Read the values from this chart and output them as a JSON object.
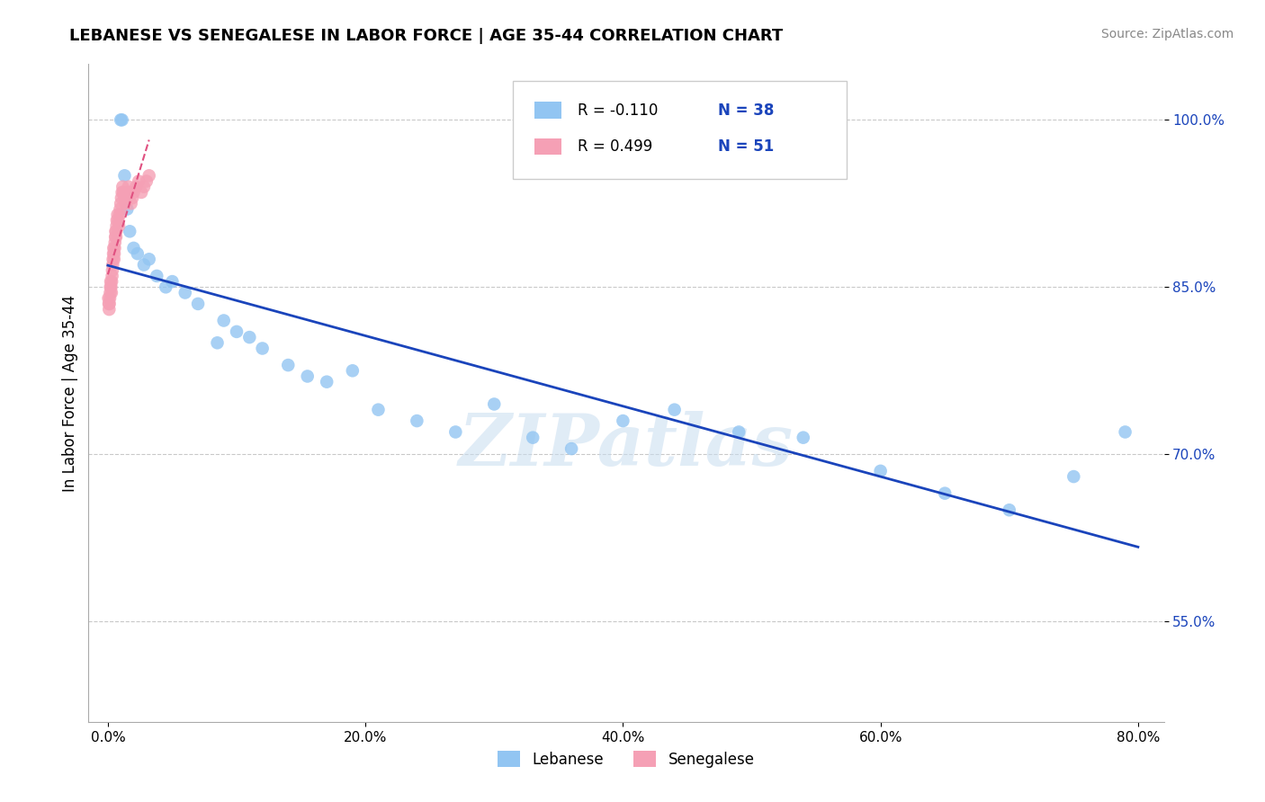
{
  "title": "LEBANESE VS SENEGALESE IN LABOR FORCE | AGE 35-44 CORRELATION CHART",
  "source": "Source: ZipAtlas.com",
  "ylabel": "In Labor Force | Age 35-44",
  "x_tick_labels": [
    "0.0%",
    "20.0%",
    "40.0%",
    "60.0%",
    "80.0%"
  ],
  "x_tick_values": [
    0.0,
    20.0,
    40.0,
    60.0,
    80.0
  ],
  "y_tick_labels": [
    "55.0%",
    "70.0%",
    "85.0%",
    "100.0%"
  ],
  "y_tick_values": [
    55.0,
    70.0,
    85.0,
    100.0
  ],
  "xlim": [
    -1.5,
    82.0
  ],
  "ylim": [
    46.0,
    105.0
  ],
  "legend_r1": "R = -0.110",
  "legend_n1": "N = 38",
  "legend_r2": "R = 0.499",
  "legend_n2": "N = 51",
  "watermark": "ZIPatlas",
  "lebanese_color": "#92C5F2",
  "senegalese_color": "#F5A0B5",
  "lebanese_line_color": "#1A44BB",
  "senegalese_line_color": "#E05080",
  "background_color": "#FFFFFF",
  "grid_color": "#BBBBBB",
  "lebanese_x": [
    1.0,
    1.1,
    1.3,
    1.5,
    1.7,
    2.0,
    2.3,
    2.8,
    3.2,
    3.8,
    4.5,
    5.0,
    6.0,
    7.0,
    8.5,
    9.0,
    10.0,
    11.0,
    12.0,
    14.0,
    15.5,
    17.0,
    19.0,
    21.0,
    24.0,
    27.0,
    30.0,
    33.0,
    36.0,
    40.0,
    44.0,
    49.0,
    54.0,
    60.0,
    65.0,
    70.0,
    75.0,
    79.0
  ],
  "lebanese_y": [
    100.0,
    100.0,
    95.0,
    92.0,
    90.0,
    88.5,
    88.0,
    87.0,
    87.5,
    86.0,
    85.0,
    85.5,
    84.5,
    83.5,
    80.0,
    82.0,
    81.0,
    80.5,
    79.5,
    78.0,
    77.0,
    76.5,
    77.5,
    74.0,
    73.0,
    72.0,
    74.5,
    71.5,
    70.5,
    73.0,
    74.0,
    72.0,
    71.5,
    68.5,
    66.5,
    65.0,
    68.0,
    72.0
  ],
  "senegalese_x": [
    0.05,
    0.08,
    0.1,
    0.12,
    0.15,
    0.18,
    0.2,
    0.22,
    0.25,
    0.28,
    0.3,
    0.33,
    0.35,
    0.38,
    0.4,
    0.43,
    0.45,
    0.48,
    0.5,
    0.53,
    0.55,
    0.58,
    0.6,
    0.63,
    0.65,
    0.68,
    0.7,
    0.75,
    0.8,
    0.85,
    0.9,
    0.95,
    1.0,
    1.05,
    1.1,
    1.15,
    1.2,
    1.3,
    1.4,
    1.5,
    1.6,
    1.7,
    1.8,
    1.9,
    2.0,
    2.2,
    2.4,
    2.6,
    2.8,
    3.0,
    3.2
  ],
  "senegalese_y": [
    84.0,
    83.5,
    83.0,
    83.5,
    84.0,
    84.5,
    85.0,
    85.5,
    85.0,
    84.5,
    85.5,
    86.0,
    86.5,
    87.0,
    87.5,
    88.0,
    88.5,
    87.5,
    88.0,
    88.5,
    89.0,
    89.5,
    90.0,
    89.5,
    90.0,
    90.5,
    91.0,
    91.5,
    91.0,
    90.5,
    91.5,
    92.0,
    92.5,
    93.0,
    93.5,
    94.0,
    93.5,
    93.0,
    92.5,
    93.5,
    94.0,
    93.5,
    92.5,
    93.0,
    93.5,
    94.0,
    94.5,
    93.5,
    94.0,
    94.5,
    95.0
  ]
}
